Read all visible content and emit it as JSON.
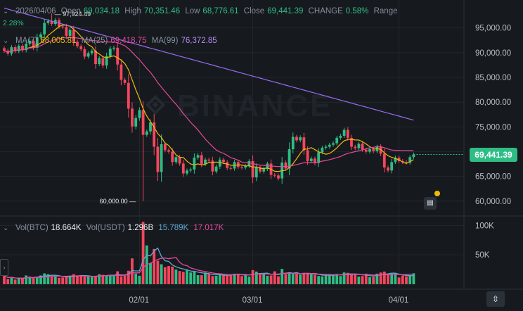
{
  "header": {
    "date": "2026/04/06",
    "open_label": "Open",
    "open": "69,034.18",
    "high_label": "High",
    "high": "70,351.46",
    "low_label": "Low",
    "low": "68,776.61",
    "close_label": "Close",
    "close": "69,441.39",
    "change_label": "CHANGE",
    "change": "0.58%",
    "range_label": "Range",
    "range": "2.28%"
  },
  "ma": {
    "ma7_label": "MA(7)",
    "ma7": "68,005.81",
    "ma25_label": "MA(25)",
    "ma25": "69,418.75",
    "ma99_label": "MA(99)",
    "ma99": "76,372.85"
  },
  "volume": {
    "btc_label": "Vol(BTC)",
    "btc": "18.664K",
    "usdt_label": "Vol(USDT)",
    "usdt": "1.296B",
    "ma5": "15.789K",
    "ma10": "17.017K"
  },
  "current_price": "69,441.39",
  "watermark": "BINANCE",
  "colors": {
    "up": "#2ebd85",
    "down": "#f6465d",
    "ma7": "#f0b90b",
    "ma25": "#e7489c",
    "ma99": "#9b6bf2",
    "vol_ma5": "#5fa8d3",
    "vol_ma10": "#e7489c",
    "background": "#161a1e",
    "grid": "#23272d"
  },
  "chart_data": {
    "type": "candlestick",
    "price_axis": {
      "min": 58000,
      "max": 99500,
      "ticks": [
        "95,000.00",
        "90,000.00",
        "85,000.00",
        "80,000.00",
        "75,000.00",
        "70,000.00",
        "65,000.00",
        "60,000.00"
      ],
      "tick_values": [
        95000,
        90000,
        85000,
        80000,
        75000,
        70000,
        65000,
        60000
      ]
    },
    "volume_axis": {
      "ticks": [
        "100K",
        "50K"
      ],
      "tick_values": [
        100000,
        50000
      ],
      "max": 110000
    },
    "x_ticks": [
      "02/01",
      "03/01",
      "04/01"
    ],
    "annotations": {
      "high_label": "97,924.49",
      "high_value": 97924.49,
      "low_label": "60,000.00",
      "low_value": 60000
    },
    "closes": [
      90400,
      89800,
      91100,
      90300,
      91400,
      90500,
      91800,
      92400,
      91000,
      93100,
      93700,
      96000,
      96400,
      95800,
      96600,
      95300,
      95200,
      93400,
      94600,
      92200,
      91300,
      90700,
      89200,
      89900,
      90400,
      87700,
      88900,
      87400,
      89300,
      90800,
      91000,
      87600,
      84500,
      83900,
      78700,
      75100,
      76800,
      78400,
      73400,
      74100,
      75900,
      71000,
      65900,
      71500,
      70300,
      70000,
      67900,
      68900,
      67600,
      65600,
      66200,
      66400,
      68800,
      69300,
      67500,
      68400,
      68200,
      66000,
      67000,
      68400,
      67900,
      66700,
      66600,
      67900,
      66900,
      66800,
      67100,
      68100,
      64800,
      66900,
      66000,
      66500,
      67600,
      65300,
      65200,
      64600,
      67800,
      66600,
      70500,
      73000,
      72300,
      72900,
      70300,
      68100,
      68600,
      67700,
      69900,
      70800,
      71000,
      71400,
      71700,
      72800,
      73200,
      74400,
      72800,
      71000,
      70700,
      71600,
      70400,
      70000,
      70500,
      70100,
      71000,
      69600,
      66800,
      66200,
      67900,
      68800,
      68100,
      67900,
      67800,
      68900,
      69434
    ],
    "volumes": [
      14000,
      9000,
      12000,
      8000,
      10000,
      9500,
      15000,
      13000,
      10500,
      12500,
      15000,
      18500,
      17000,
      13500,
      13000,
      11000,
      11500,
      13000,
      14500,
      17000,
      14500,
      15500,
      12500,
      13000,
      12500,
      14000,
      17000,
      16000,
      15000,
      14500,
      14500,
      22000,
      13500,
      14500,
      23000,
      44000,
      18000,
      14500,
      106000,
      66000,
      36000,
      60000,
      40000,
      34000,
      29000,
      31000,
      30000,
      25000,
      22500,
      21000,
      24000,
      20000,
      22500,
      15500,
      15500,
      20000,
      17500,
      14000,
      14500,
      16000,
      16000,
      15000,
      17000,
      18000,
      18000,
      14000,
      15500,
      13000,
      24000,
      21500,
      17500,
      17000,
      14500,
      15000,
      22000,
      13500,
      26000,
      17500,
      20000,
      17000,
      18500,
      16500,
      19500,
      17500,
      17000,
      16000,
      14000,
      13500,
      16500,
      16500,
      16000,
      17500,
      14000,
      20000,
      19500,
      17000,
      16500,
      13000,
      14000,
      18000,
      12000,
      12500,
      18000,
      20000,
      21500,
      17000,
      18000,
      18000,
      11500,
      14500,
      13500,
      15500,
      18664
    ]
  }
}
